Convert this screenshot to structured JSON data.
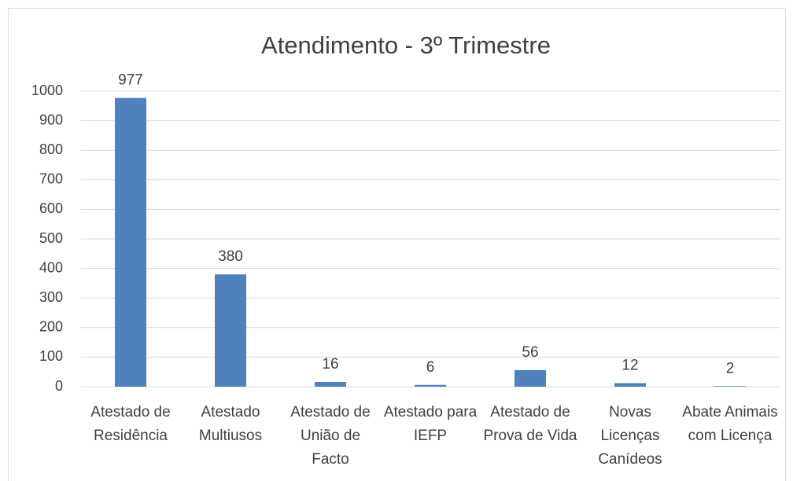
{
  "chart_data": {
    "type": "bar",
    "title": "Atendimento - 3º Trimestre",
    "categories": [
      "Atestado de Residência",
      "Atestado Multiusos",
      "Atestado de União de Facto",
      "Atestado para IEFP",
      "Atestado de Prova de Vida",
      "Novas Licenças Canídeos",
      "Abate Animais com Licença"
    ],
    "values": [
      977,
      380,
      16,
      6,
      56,
      12,
      2
    ],
    "color": "#4f81bd",
    "ylim": [
      0,
      1000
    ],
    "yticks": [
      0,
      100,
      200,
      300,
      400,
      500,
      600,
      700,
      800,
      900,
      1000
    ],
    "grid": true
  }
}
